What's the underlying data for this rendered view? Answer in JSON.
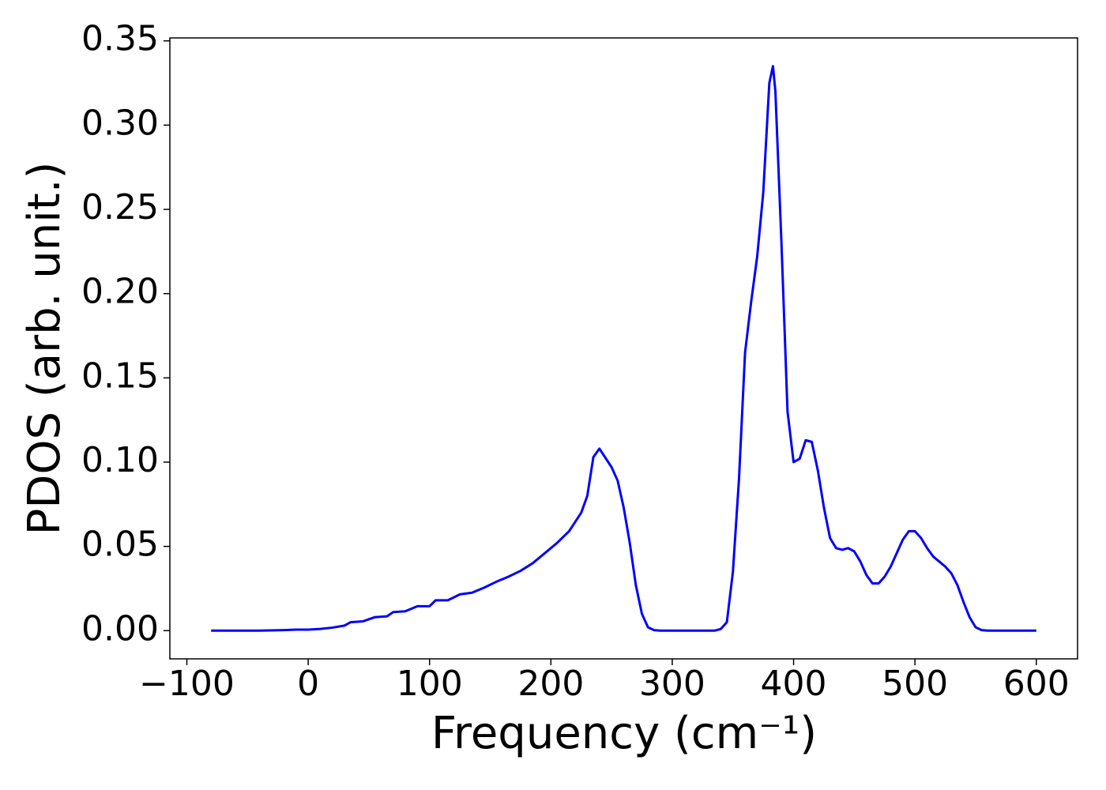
{
  "chart_data": {
    "type": "line",
    "xlabel": "Frequency (cm⁻¹)",
    "ylabel": "PDOS (arb. unit.)",
    "xlim": [
      -114,
      634
    ],
    "ylim": [
      -0.01675,
      0.35175
    ],
    "xticks": [
      {
        "value": -100,
        "label": "−100"
      },
      0,
      100,
      200,
      300,
      400,
      500,
      600
    ],
    "yticks": [
      {
        "value": 0,
        "label": "0.00"
      },
      0.05,
      {
        "value": 0.1,
        "label": "0.10"
      },
      0.15,
      {
        "value": 0.2,
        "label": "0.20"
      },
      0.25,
      {
        "value": 0.3,
        "label": "0.30"
      },
      0.35
    ],
    "series": [
      {
        "color": "#0000ff",
        "x": [
          -80,
          -60,
          -40,
          -20,
          -10,
          0,
          10,
          20,
          30,
          35,
          45,
          55,
          65,
          70,
          80,
          90,
          100,
          105,
          115,
          125,
          135,
          145,
          155,
          165,
          175,
          185,
          195,
          205,
          215,
          225,
          230,
          235,
          240,
          250,
          255,
          260,
          265,
          270,
          275,
          280,
          285,
          290,
          310,
          335,
          340,
          345,
          350,
          355,
          360,
          365,
          370,
          375,
          380,
          383,
          385,
          390,
          395,
          400,
          405,
          410,
          415,
          420,
          425,
          430,
          435,
          440,
          445,
          450,
          455,
          460,
          465,
          470,
          475,
          480,
          485,
          490,
          495,
          500,
          505,
          510,
          515,
          520,
          525,
          530,
          535,
          540,
          545,
          550,
          555,
          560,
          580,
          600
        ],
        "values": [
          0,
          0,
          0,
          0.0003,
          0.0006,
          0.0006,
          0.001,
          0.0018,
          0.003,
          0.005,
          0.0055,
          0.008,
          0.0085,
          0.011,
          0.0115,
          0.0145,
          0.0145,
          0.018,
          0.018,
          0.0215,
          0.0225,
          0.0255,
          0.029,
          0.032,
          0.0355,
          0.04,
          0.046,
          0.052,
          0.059,
          0.07,
          0.08,
          0.103,
          0.108,
          0.097,
          0.089,
          0.073,
          0.052,
          0.027,
          0.01,
          0.002,
          0.0003,
          0,
          0,
          0,
          0.001,
          0.005,
          0.035,
          0.09,
          0.165,
          0.195,
          0.222,
          0.26,
          0.325,
          0.335,
          0.32,
          0.23,
          0.13,
          0.1,
          0.102,
          0.113,
          0.112,
          0.095,
          0.073,
          0.055,
          0.049,
          0.048,
          0.049,
          0.047,
          0.041,
          0.033,
          0.028,
          0.028,
          0.032,
          0.038,
          0.046,
          0.054,
          0.059,
          0.059,
          0.055,
          0.049,
          0.044,
          0.041,
          0.038,
          0.034,
          0.027,
          0.017,
          0.008,
          0.002,
          0.0003,
          0,
          0,
          0
        ]
      }
    ]
  }
}
